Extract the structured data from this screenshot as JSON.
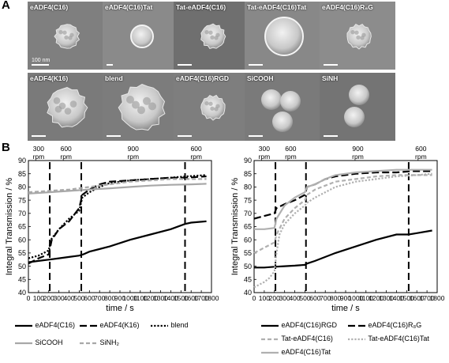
{
  "panel_a_label": "A",
  "panel_b_label": "B",
  "scale_bar_text": "100 nm",
  "tiles": [
    {
      "label": "eADF4(C16)",
      "kind": "rough",
      "bg": "#7f7f7f"
    },
    {
      "label": "eADF4(C16)Tat",
      "kind": "smooth",
      "bg": "#8a8a8a"
    },
    {
      "label": "Tat-eADF4(C16)",
      "kind": "rough",
      "bg": "#6f6f6f"
    },
    {
      "label": "Tat-eADF4(C16)Tat",
      "kind": "smooth",
      "bg": "#888888"
    },
    {
      "label": "eADF4(C16)R₈G",
      "kind": "rough",
      "bg": "#8c8c8c"
    },
    {
      "label": "eADF4(K16)",
      "kind": "rough",
      "bg": "#7a7a7a"
    },
    {
      "label": "blend",
      "kind": "rough",
      "bg": "#7c7c7c"
    },
    {
      "label": "eADF4(C16)RGD",
      "kind": "rough",
      "bg": "#7e7e7e"
    },
    {
      "label": "SiCOOH",
      "kind": "multi",
      "bg": "#7a7a7a"
    },
    {
      "label": "SiNH",
      "kind": "multi",
      "bg": "#747474"
    }
  ],
  "chart_data": [
    {
      "type": "line",
      "xlabel": "time / s",
      "ylabel": "Integral Transmission / %",
      "xlim": [
        0,
        1800
      ],
      "ylim": [
        40,
        90
      ],
      "xticks": [
        0,
        100,
        200,
        300,
        400,
        500,
        600,
        700,
        800,
        900,
        1000,
        1100,
        1200,
        1300,
        1400,
        1500,
        1600,
        1700,
        1800
      ],
      "yticks": [
        40,
        45,
        50,
        55,
        60,
        65,
        70,
        75,
        80,
        85,
        90
      ],
      "rpm_markers": [
        210,
        520,
        1540
      ],
      "rpm_labels": [
        {
          "x": 100,
          "text": "300\nrpm"
        },
        {
          "x": 370,
          "text": "600\nrpm"
        },
        {
          "x": 1030,
          "text": "900\nrpm"
        },
        {
          "x": 1650,
          "text": "600\nrpm"
        }
      ],
      "series": [
        {
          "name": "eADF4(C16)",
          "color": "#000000",
          "dash": "solid",
          "x": [
            0,
            100,
            200,
            300,
            400,
            500,
            540,
            600,
            800,
            1000,
            1200,
            1400,
            1540,
            1600,
            1750
          ],
          "y": [
            51.5,
            52,
            52.5,
            53,
            53.5,
            54,
            54.5,
            55.5,
            57.5,
            60,
            62,
            64,
            66,
            66.5,
            67
          ]
        },
        {
          "name": "eADF4(K16)",
          "color": "#000000",
          "dash": "longdash",
          "x": [
            0,
            100,
            200,
            230,
            300,
            400,
            500,
            530,
            600,
            700,
            800,
            1000,
            1200,
            1400,
            1550,
            1750
          ],
          "y": [
            51,
            53,
            54.5,
            60,
            64,
            67,
            72,
            77,
            79,
            81,
            82,
            82.5,
            83,
            83.5,
            83.5,
            84
          ]
        },
        {
          "name": "blend",
          "color": "#000000",
          "dash": "dot",
          "x": [
            0,
            100,
            200,
            220,
            300,
            400,
            500,
            530,
            600,
            700,
            800,
            1000,
            1200,
            1400,
            1550,
            1750
          ],
          "y": [
            53,
            54,
            56,
            60,
            64,
            68,
            71,
            76,
            78,
            80,
            81.5,
            82.5,
            83,
            83.5,
            84,
            84.5
          ]
        },
        {
          "name": "SiCOOH",
          "color": "#a8a8a8",
          "dash": "solid",
          "x": [
            0,
            200,
            400,
            600,
            800,
            1000,
            1200,
            1400,
            1600,
            1750
          ],
          "y": [
            77.5,
            78,
            78.5,
            79,
            79.5,
            80,
            80.5,
            80.8,
            81,
            81.2
          ]
        },
        {
          "name": "SiNH₂",
          "color": "#a8a8a8",
          "dash": "dash",
          "x": [
            0,
            200,
            400,
            600,
            800,
            1000,
            1200,
            1400,
            1600,
            1750
          ],
          "y": [
            78,
            78.5,
            79,
            80,
            81,
            82,
            82.5,
            83,
            83,
            83
          ]
        }
      ]
    },
    {
      "type": "line",
      "xlabel": "time / s",
      "ylabel": "Integral Transmission / %",
      "xlim": [
        0,
        1800
      ],
      "ylim": [
        40,
        90
      ],
      "xticks": [
        0,
        100,
        200,
        300,
        400,
        500,
        600,
        700,
        800,
        900,
        1000,
        1100,
        1200,
        1300,
        1400,
        1500,
        1600,
        1700,
        1800
      ],
      "yticks": [
        40,
        45,
        50,
        55,
        60,
        65,
        70,
        75,
        80,
        85,
        90
      ],
      "rpm_markers": [
        210,
        510,
        1520
      ],
      "rpm_labels": [
        {
          "x": 100,
          "text": "300\nrpm"
        },
        {
          "x": 360,
          "text": "600\nrpm"
        },
        {
          "x": 1020,
          "text": "900\nrpm"
        },
        {
          "x": 1640,
          "text": "600\nrpm"
        }
      ],
      "series": [
        {
          "name": "eADF4(C16)RGD",
          "color": "#000000",
          "dash": "solid",
          "x": [
            0,
            100,
            200,
            300,
            400,
            500,
            520,
            600,
            800,
            1000,
            1200,
            1400,
            1520,
            1600,
            1750
          ],
          "y": [
            49.5,
            49.5,
            49.8,
            50,
            50.2,
            50.5,
            51,
            52,
            55,
            57.5,
            60,
            62,
            62,
            62.5,
            63.5
          ]
        },
        {
          "name": "eADF4(C16)R₈G",
          "color": "#000000",
          "dash": "longdash",
          "x": [
            0,
            100,
            200,
            220,
            300,
            400,
            500,
            520,
            600,
            700,
            800,
            1000,
            1200,
            1400,
            1550,
            1750
          ],
          "y": [
            68,
            69,
            70,
            72,
            73.5,
            75,
            77,
            80,
            81,
            83,
            84,
            85,
            85.5,
            85.5,
            86,
            86
          ]
        },
        {
          "name": "Tat-eADF4(C16)",
          "color": "#b0b0b0",
          "dash": "dash",
          "x": [
            0,
            100,
            200,
            220,
            300,
            400,
            500,
            520,
            600,
            700,
            800,
            1000,
            1200,
            1400,
            1550,
            1750
          ],
          "y": [
            55,
            57,
            59,
            62,
            68,
            72,
            75,
            77,
            79,
            80.5,
            82,
            83,
            84,
            84.5,
            84.5,
            84.5
          ]
        },
        {
          "name": "Tat-eADF4(C16)Tat",
          "color": "#b0b0b0",
          "dash": "dot",
          "x": [
            0,
            100,
            150,
            200,
            220,
            250,
            300,
            400,
            500,
            520,
            600,
            700,
            800,
            1000,
            1200,
            1400,
            1600,
            1750
          ],
          "y": [
            42,
            44,
            45.5,
            48,
            55,
            62,
            66,
            70,
            73,
            74,
            76,
            78,
            80,
            82,
            83,
            84,
            84.5,
            85
          ]
        },
        {
          "name": "eADF4(C16)Tat",
          "color": "#b0b0b0",
          "dash": "solid",
          "x": [
            0,
            100,
            200,
            220,
            300,
            400,
            500,
            520,
            600,
            700,
            800,
            1000,
            1200,
            1400,
            1600,
            1750
          ],
          "y": [
            64,
            64,
            64.5,
            68,
            73,
            76,
            78,
            80,
            81,
            83,
            84.5,
            85.5,
            86,
            86.5,
            86.5,
            86.5
          ]
        }
      ]
    }
  ]
}
